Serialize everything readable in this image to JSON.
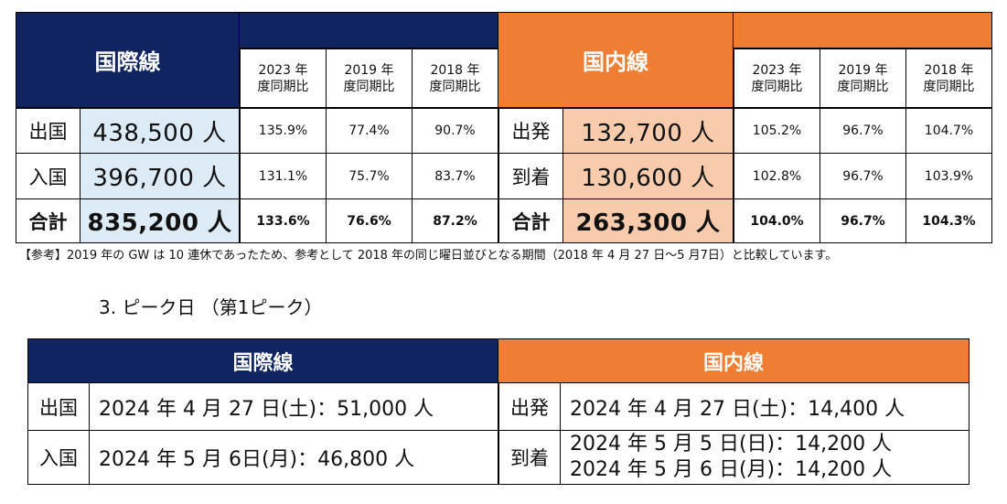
{
  "table1": {
    "international": {
      "title": "国際線",
      "headers": [
        {
          "line1": "2023 年",
          "line2": "度同期比"
        },
        {
          "line1": "2019 年",
          "line2": "度同期比"
        },
        {
          "line1": "2018 年",
          "line2": "度同期比"
        }
      ],
      "rows": [
        {
          "label": "出国",
          "value": "438,500 人",
          "pct": [
            "135.9%",
            "77.4%",
            "90.7%"
          ]
        },
        {
          "label": "入国",
          "value": "396,700 人",
          "pct": [
            "131.1%",
            "75.7%",
            "83.7%"
          ]
        },
        {
          "label": "合計",
          "value": "835,200 人",
          "pct": [
            "133.6%",
            "76.6%",
            "87.2%"
          ]
        }
      ]
    },
    "domestic": {
      "title": "国内線",
      "headers": [
        {
          "line1": "2023 年",
          "line2": "度同期比"
        },
        {
          "line1": "2019 年",
          "line2": "度同期比"
        },
        {
          "line1": "2018 年",
          "line2": "度同期比"
        }
      ],
      "rows": [
        {
          "label": "出発",
          "value": "132,700 人",
          "pct": [
            "105.2%",
            "96.7%",
            "104.7%"
          ]
        },
        {
          "label": "到着",
          "value": "130,600 人",
          "pct": [
            "102.8%",
            "96.7%",
            "103.9%"
          ]
        },
        {
          "label": "合計",
          "value": "263,300 人",
          "pct": [
            "104.0%",
            "96.7%",
            "104.3%"
          ]
        }
      ]
    }
  },
  "note": "【参考】2019 年の GW は 10 連休であったため、参考として 2018 年の同じ曜日並びとなる期間（2018 年 4 月 27 日～5 月7日）と比較しています。",
  "section_title": "3. ピーク日 （第1ピーク）",
  "table2": {
    "international": {
      "title": "国際線",
      "rows": [
        {
          "label": "出国",
          "value": "2024 年 4 月 27 日(土)：51,000 人"
        },
        {
          "label": "入国",
          "value": "2024 年 5 月 6日(月)：46,800 人"
        }
      ]
    },
    "domestic": {
      "title": "国内線",
      "rows": [
        {
          "label": "出発",
          "values": [
            "2024 年 4 月 27 日(土)：14,400 人"
          ]
        },
        {
          "label": "到着",
          "values": [
            "2024 年 5 月 5 日(日)：14,200 人",
            "2024 年 5 月 6 日(月)：14,200 人"
          ]
        }
      ]
    }
  },
  "colors": {
    "navy": "#0f2460",
    "orange": "#ef7d32",
    "light_blue": "#ddebf7",
    "peach": "#f8cbad"
  }
}
